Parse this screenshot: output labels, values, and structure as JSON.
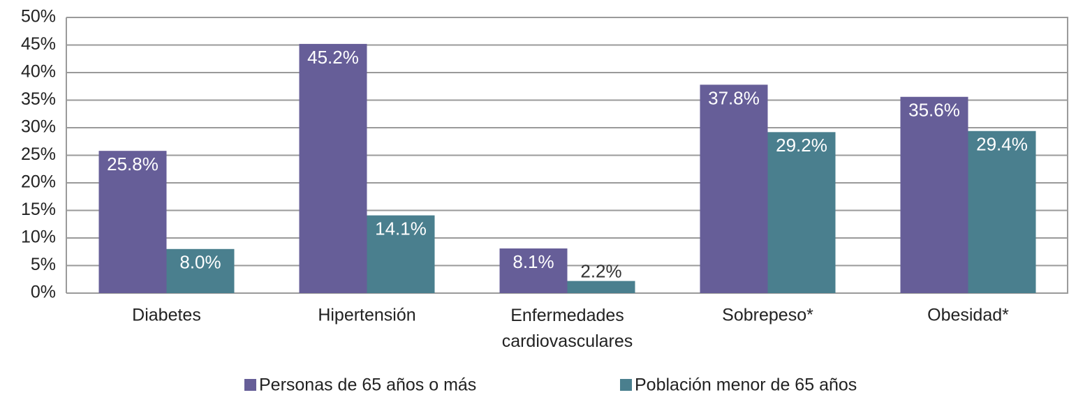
{
  "chart_data": {
    "type": "bar",
    "categories": [
      "Diabetes",
      "Hipertensión",
      "Enfermedades cardiovasculares",
      "Sobrepeso*",
      "Obesidad*"
    ],
    "series": [
      {
        "name": "Personas de 65 años o más",
        "color": "#665e98",
        "values": [
          25.8,
          45.2,
          8.1,
          37.8,
          35.6
        ],
        "value_labels": [
          "25.8%",
          "45.2%",
          "8.1%",
          "37.8%",
          "35.6%"
        ]
      },
      {
        "name": "Población menor de 65 años",
        "color": "#4a7f8e",
        "values": [
          8.0,
          14.1,
          2.2,
          29.2,
          29.4
        ],
        "value_labels": [
          "8.0%",
          "14.1%",
          "2.2%",
          "29.2%",
          "29.4%"
        ]
      }
    ],
    "ylim": [
      0,
      50
    ],
    "yticks": [
      {
        "value": 0,
        "label": "0%"
      },
      {
        "value": 5,
        "label": "5%"
      },
      {
        "value": 10,
        "label": "10%"
      },
      {
        "value": 15,
        "label": "15%"
      },
      {
        "value": 20,
        "label": "20%"
      },
      {
        "value": 25,
        "label": "25%"
      },
      {
        "value": 30,
        "label": "30%"
      },
      {
        "value": 35,
        "label": "35%"
      },
      {
        "value": 40,
        "label": "40%"
      },
      {
        "value": 45,
        "label": "45%"
      },
      {
        "value": 50,
        "label": "50%"
      }
    ],
    "grid": true,
    "legend": "bottom"
  }
}
